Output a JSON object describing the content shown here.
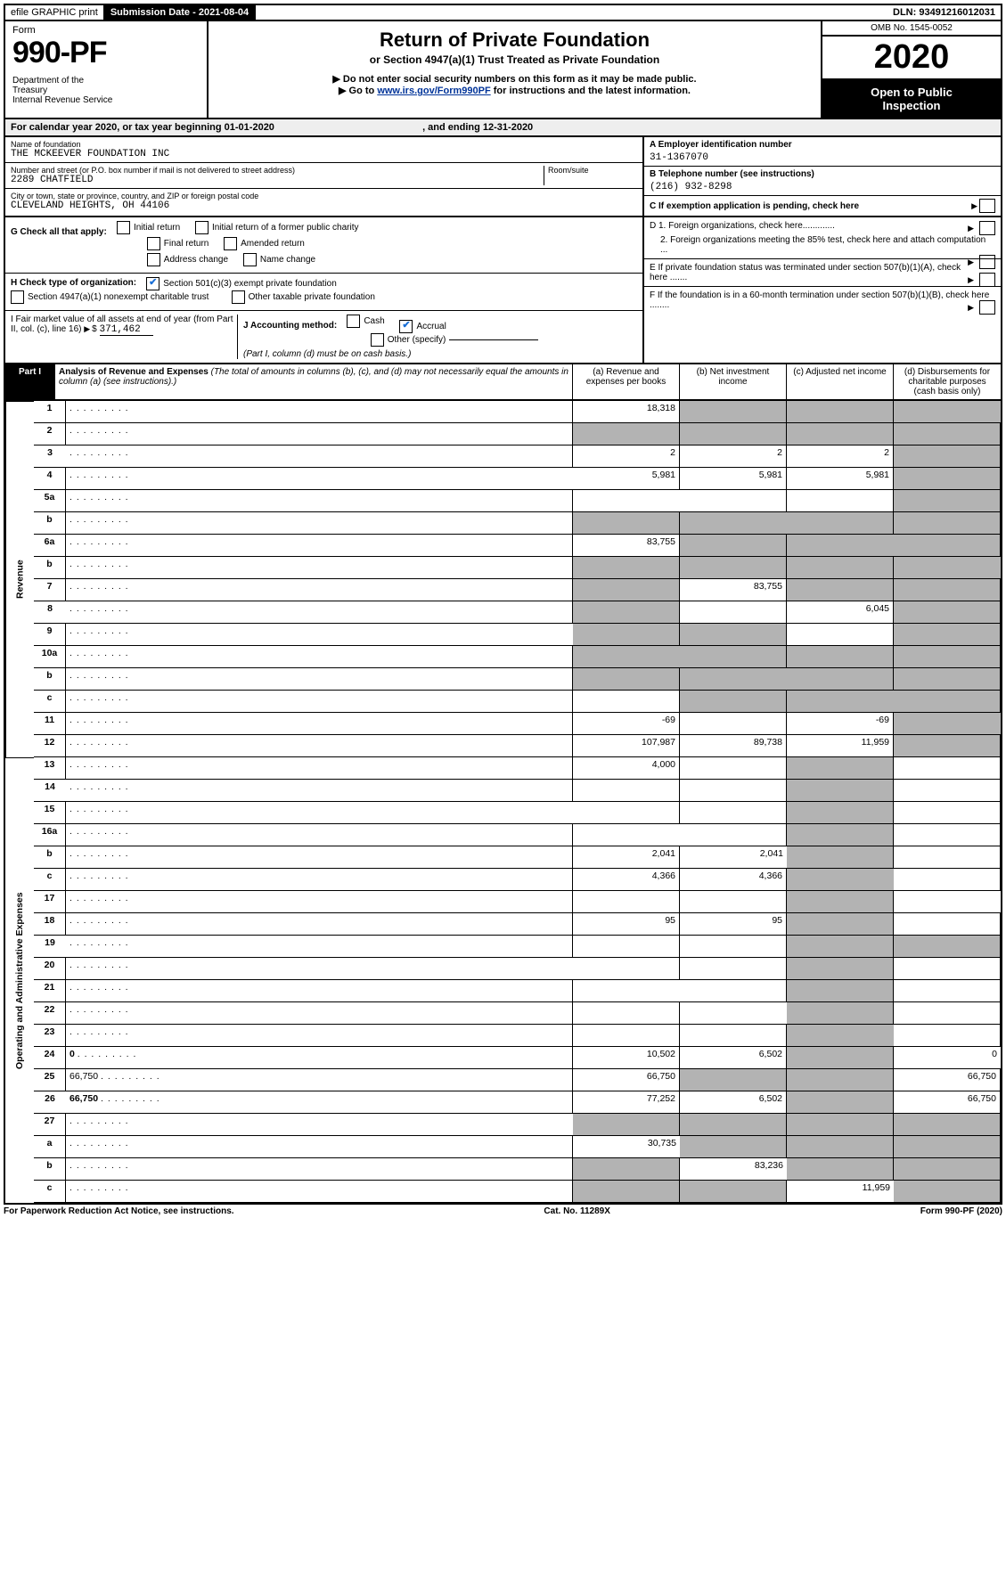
{
  "top": {
    "efile": "efile GRAPHIC print",
    "sub_label": "Submission Date - 2021-08-04",
    "dln": "DLN: 93491216012031"
  },
  "header": {
    "form_word": "Form",
    "form_num": "990-PF",
    "dept1": "Department of the",
    "dept2": "Treasury",
    "dept3": "Internal Revenue Service",
    "title": "Return of Private Foundation",
    "subtitle": "or Section 4947(a)(1) Trust Treated as Private Foundation",
    "warn": "Do not enter social security numbers on this form as it may be made public.",
    "goto_pre": "Go to ",
    "goto_link": "www.irs.gov/Form990PF",
    "goto_post": " for instructions and the latest information.",
    "omb": "OMB No. 1545-0052",
    "year": "2020",
    "open1": "Open to Public",
    "open2": "Inspection"
  },
  "cal": {
    "pre": "For calendar year 2020, or tax year beginning ",
    "begin": "01-01-2020",
    "mid": " , and ending ",
    "end": "12-31-2020"
  },
  "entity": {
    "name_lbl": "Name of foundation",
    "name": "THE MCKEEVER FOUNDATION INC",
    "addr_lbl": "Number and street (or P.O. box number if mail is not delivered to street address)",
    "room_lbl": "Room/suite",
    "addr": "2289 CHATFIELD",
    "city_lbl": "City or town, state or province, country, and ZIP or foreign postal code",
    "city": "CLEVELAND HEIGHTS, OH  44106",
    "a_lbl": "A Employer identification number",
    "a_val": "31-1367070",
    "b_lbl": "B Telephone number (see instructions)",
    "b_val": "(216) 932-8298",
    "c_lbl": "C If exemption application is pending, check here"
  },
  "g": {
    "label": "G Check all that apply:",
    "initial": "Initial return",
    "initial_former": "Initial return of a former public charity",
    "final": "Final return",
    "amended": "Amended return",
    "addr": "Address change",
    "name": "Name change"
  },
  "h": {
    "label": "H Check type of organization:",
    "sec501": "Section 501(c)(3) exempt private foundation",
    "sec4947": "Section 4947(a)(1) nonexempt charitable trust",
    "other": "Other taxable private foundation"
  },
  "i": {
    "label": "I Fair market value of all assets at end of year (from Part II, col. (c), line 16)",
    "val_sym": "$",
    "val": "371,462"
  },
  "j": {
    "label": "J Accounting method:",
    "cash": "Cash",
    "accrual": "Accrual",
    "other": "Other (specify)",
    "note": "(Part I, column (d) must be on cash basis.)"
  },
  "right_notes": {
    "d1": "D 1. Foreign organizations, check here.............",
    "d2": "2. Foreign organizations meeting the 85% test, check here and attach computation ...",
    "e": "E  If private foundation status was terminated under section 507(b)(1)(A), check here .......",
    "f": "F  If the foundation is in a 60-month termination under section 507(b)(1)(B), check here ........"
  },
  "part1_hdr": {
    "tag": "Part I",
    "title": "Analysis of Revenue and Expenses",
    "tnote": " (The total of amounts in columns (b), (c), and (d) may not necessarily equal the amounts in column (a) (see instructions).)",
    "a": "(a)   Revenue and expenses per books",
    "b": "(b)  Net investment income",
    "c": "(c)  Adjusted net income",
    "d": "(d)  Disbursements for charitable purposes (cash basis only)"
  },
  "vlabels": {
    "rev": "Revenue",
    "ops": "Operating and Administrative Expenses"
  },
  "rows": {
    "r1": {
      "n": "1",
      "d": "",
      "a": "18,318",
      "b": "",
      "c": ""
    },
    "r2": {
      "n": "2",
      "d": "",
      "a": "",
      "b": "",
      "c": ""
    },
    "r3": {
      "n": "3",
      "d": "",
      "a": "2",
      "b": "2",
      "c": "2"
    },
    "r4": {
      "n": "4",
      "d": "",
      "a": "5,981",
      "b": "5,981",
      "c": "5,981"
    },
    "r5a": {
      "n": "5a",
      "d": "",
      "a": "",
      "b": "",
      "c": ""
    },
    "r5b": {
      "n": "b",
      "d": "",
      "a": "",
      "b": "",
      "c": ""
    },
    "r6a": {
      "n": "6a",
      "d": "",
      "a": "83,755",
      "b": "",
      "c": ""
    },
    "r6b": {
      "n": "b",
      "d": "",
      "a": "",
      "b": "",
      "c": ""
    },
    "r7": {
      "n": "7",
      "d": "",
      "a": "",
      "b": "83,755",
      "c": ""
    },
    "r8": {
      "n": "8",
      "d": "",
      "a": "",
      "b": "",
      "c": "6,045"
    },
    "r9": {
      "n": "9",
      "d": "",
      "a": "",
      "b": "",
      "c": ""
    },
    "r10a": {
      "n": "10a",
      "d": "",
      "a": "",
      "b": "",
      "c": ""
    },
    "r10b": {
      "n": "b",
      "d": "",
      "a": "",
      "b": "",
      "c": ""
    },
    "r10c": {
      "n": "c",
      "d": "",
      "a": "",
      "b": "",
      "c": ""
    },
    "r11": {
      "n": "11",
      "d": "",
      "a": "-69",
      "b": "",
      "c": "-69"
    },
    "r12": {
      "n": "12",
      "d": "",
      "a": "107,987",
      "b": "89,738",
      "c": "11,959"
    },
    "r13": {
      "n": "13",
      "d": "",
      "a": "4,000",
      "b": "",
      "c": ""
    },
    "r14": {
      "n": "14",
      "d": "",
      "a": "",
      "b": "",
      "c": ""
    },
    "r15": {
      "n": "15",
      "d": "",
      "a": "",
      "b": "",
      "c": ""
    },
    "r16a": {
      "n": "16a",
      "d": "",
      "a": "",
      "b": "",
      "c": ""
    },
    "r16b": {
      "n": "b",
      "d": "",
      "a": "2,041",
      "b": "2,041",
      "c": ""
    },
    "r16c": {
      "n": "c",
      "d": "",
      "a": "4,366",
      "b": "4,366",
      "c": ""
    },
    "r17": {
      "n": "17",
      "d": "",
      "a": "",
      "b": "",
      "c": ""
    },
    "r18": {
      "n": "18",
      "d": "",
      "a": "95",
      "b": "95",
      "c": ""
    },
    "r19": {
      "n": "19",
      "d": "",
      "a": "",
      "b": "",
      "c": ""
    },
    "r20": {
      "n": "20",
      "d": "",
      "a": "",
      "b": "",
      "c": ""
    },
    "r21": {
      "n": "21",
      "d": "",
      "a": "",
      "b": "",
      "c": ""
    },
    "r22": {
      "n": "22",
      "d": "",
      "a": "",
      "b": "",
      "c": ""
    },
    "r23": {
      "n": "23",
      "d": "",
      "a": "",
      "b": "",
      "c": ""
    },
    "r24": {
      "n": "24",
      "d": "0",
      "a": "10,502",
      "b": "6,502",
      "c": ""
    },
    "r25": {
      "n": "25",
      "d": "66,750",
      "a": "66,750",
      "b": "",
      "c": ""
    },
    "r26": {
      "n": "26",
      "d": "66,750",
      "a": "77,252",
      "b": "6,502",
      "c": ""
    },
    "r27": {
      "n": "27",
      "d": "",
      "a": "",
      "b": "",
      "c": ""
    },
    "r27a": {
      "n": "a",
      "d": "",
      "a": "30,735",
      "b": "",
      "c": ""
    },
    "r27b": {
      "n": "b",
      "d": "",
      "a": "",
      "b": "83,236",
      "c": ""
    },
    "r27c": {
      "n": "c",
      "d": "",
      "a": "",
      "b": "",
      "c": "11,959"
    }
  },
  "footer": {
    "pra": "For Paperwork Reduction Act Notice, see instructions.",
    "cat": "Cat. No. 11289X",
    "form": "Form 990-PF (2020)"
  },
  "shading": {
    "d_shaded_rows": [
      "r1",
      "r2",
      "r3",
      "r4",
      "r5a",
      "r5b",
      "r6a",
      "r6b",
      "r7",
      "r8",
      "r9",
      "r10a",
      "r10b",
      "r10c",
      "r11",
      "r12"
    ],
    "bc_shaded_rows_rev": [
      "r2",
      "r5b",
      "r6b",
      "r10a",
      "r10b"
    ],
    "a_shaded_rev": [
      "r2",
      "r5b",
      "r6b",
      "r7",
      "r8",
      "r9",
      "r10a",
      "r10b"
    ],
    "b_shaded_rev_extra": [
      "r1",
      "r6a",
      "r9",
      "r10c"
    ],
    "c_shaded_rev_extra": [
      "r1",
      "r6a",
      "r7",
      "r10c"
    ],
    "b_shaded_ops": [
      "r25"
    ],
    "c_shaded_ops_all": true,
    "r27_shade_a": [
      "r27",
      "r27b",
      "r27c"
    ],
    "r27_shade_b": [
      "r27",
      "r27a",
      "r27c"
    ],
    "r27_shade_c": [
      "r27",
      "r27a",
      "r27b"
    ],
    "r27_shade_d": [
      "r27",
      "r27a",
      "r27b",
      "r27c"
    ]
  }
}
